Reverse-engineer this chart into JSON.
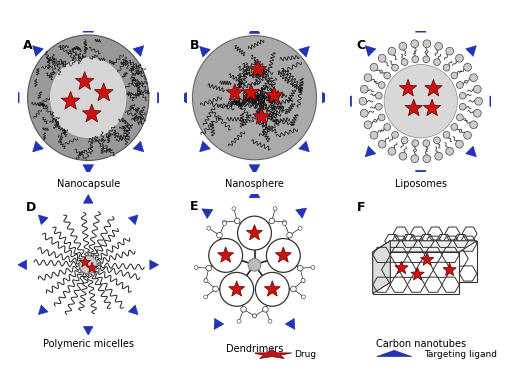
{
  "labels": [
    "Nanocapsule",
    "Nanosphere",
    "Liposomes",
    "Polymeric micelles",
    "Dendrimers",
    "Carbon nanotubes"
  ],
  "panel_letters": [
    "A",
    "B",
    "C",
    "D",
    "E",
    "F"
  ],
  "legend_drug": "Drug",
  "legend_ligand": "Targeting ligand",
  "bg_color": "#ffffff",
  "shell_gray": "#999999",
  "core_light": "#d8d8d8",
  "sphere_gray": "#aaaaaa",
  "lipid_gray": "#bbbbbb",
  "red_drug": "#cc1111",
  "blue_tri": "#2233bb",
  "black_line": "#111111"
}
